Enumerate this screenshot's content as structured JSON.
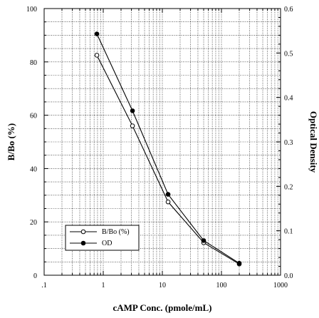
{
  "chart_data": {
    "type": "line",
    "xlabel": "cAMP Conc. (pmole/mL)",
    "ylabel": "B/Bo (%)",
    "y2label": "Optical Density",
    "xscale": "log",
    "xlim": [
      0.1,
      1000
    ],
    "ylim": [
      0,
      100
    ],
    "y2lim": [
      0,
      0.6
    ],
    "grid": true,
    "legend_position": "bottom-left",
    "x_tick_labels": [
      ".1",
      "1",
      "10",
      "100",
      "1000"
    ],
    "y_tick_labels": [
      "0",
      "20",
      "40",
      "60",
      "80",
      "100"
    ],
    "y2_tick_labels": [
      "0.0",
      "0.1",
      "0.2",
      "0.3",
      "0.4",
      "0.5",
      "0.6"
    ],
    "series": [
      {
        "name": "B/Bo (%)",
        "axis": "left",
        "marker": "open-circle",
        "x": [
          0.78,
          3.125,
          12.5,
          50,
          200
        ],
        "y": [
          82.5,
          56,
          27.5,
          12.2,
          4.2
        ]
      },
      {
        "name": "OD",
        "axis": "right",
        "marker": "filled-circle",
        "x": [
          0.78,
          3.125,
          12.5,
          50,
          200
        ],
        "y": [
          0.543,
          0.37,
          0.182,
          0.078,
          0.027
        ]
      }
    ]
  }
}
